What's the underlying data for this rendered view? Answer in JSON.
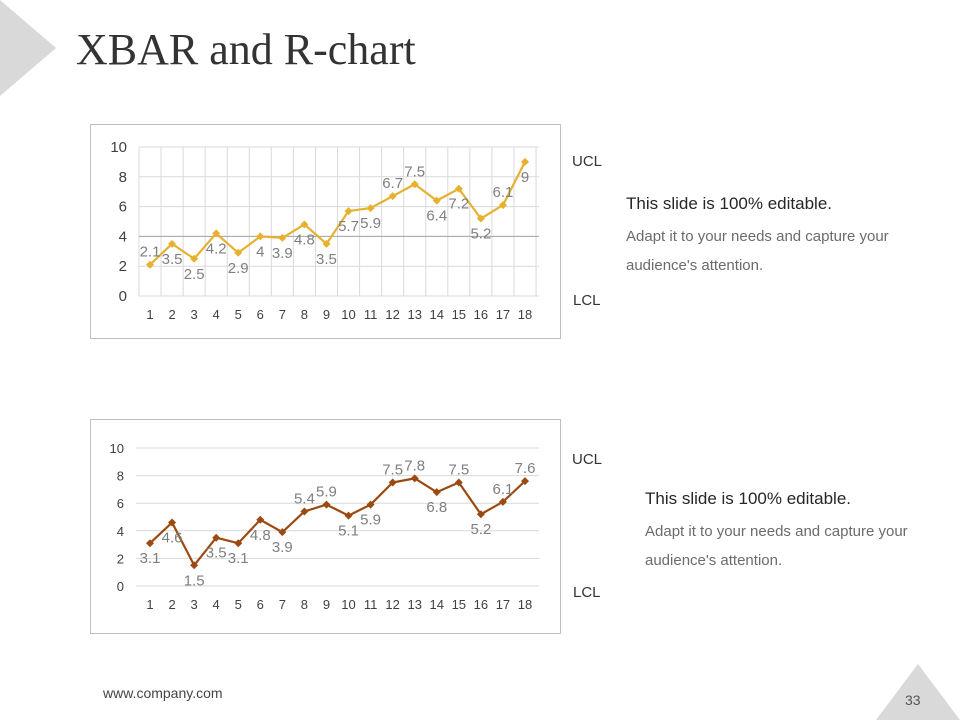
{
  "slide": {
    "title": "XBAR and R-chart",
    "footer_url": "www.company.com",
    "page_number": "33",
    "accent_gray": "#d9d9d9"
  },
  "chart_data": [
    {
      "type": "line",
      "title": "",
      "xlabel": "",
      "ylabel": "",
      "categories": [
        "1",
        "2",
        "3",
        "4",
        "5",
        "6",
        "7",
        "8",
        "9",
        "10",
        "11",
        "12",
        "13",
        "14",
        "15",
        "16",
        "17",
        "18"
      ],
      "series": [
        {
          "name": "XBAR",
          "color": "#e6b12e",
          "values": [
            2.1,
            3.5,
            2.5,
            4.2,
            2.9,
            4,
            3.9,
            4.8,
            3.5,
            5.7,
            5.9,
            6.7,
            7.5,
            6.4,
            7.2,
            5.2,
            6.1,
            9
          ]
        }
      ],
      "ylim": [
        0,
        10
      ],
      "yticks": [
        "0",
        "2",
        "4",
        "6",
        "8",
        "10"
      ],
      "vertical_grid": true,
      "center_line": 4,
      "limits": {
        "ucl_label": "UCL",
        "lcl_label": "LCL"
      }
    },
    {
      "type": "line",
      "title": "",
      "xlabel": "",
      "ylabel": "",
      "categories": [
        "1",
        "2",
        "3",
        "4",
        "5",
        "6",
        "7",
        "8",
        "9",
        "10",
        "11",
        "12",
        "13",
        "14",
        "15",
        "16",
        "17",
        "18"
      ],
      "series": [
        {
          "name": "R",
          "color": "#9b4a12",
          "values": [
            3.1,
            4.6,
            1.5,
            3.5,
            3.1,
            4.8,
            3.9,
            5.4,
            5.9,
            5.1,
            5.9,
            7.5,
            7.8,
            6.8,
            7.5,
            5.2,
            6.1,
            7.6
          ]
        }
      ],
      "ylim": [
        0,
        10
      ],
      "yticks": [
        "0",
        "2",
        "4",
        "6",
        "8",
        "10"
      ],
      "vertical_grid": false,
      "limits": {
        "ucl_label": "UCL",
        "lcl_label": "LCL"
      }
    }
  ],
  "notes": [
    {
      "heading": "This slide is 100% editable.",
      "body": "Adapt it to your needs and capture your audience's attention."
    },
    {
      "heading": "This slide is 100% editable.",
      "body": "Adapt it to your needs and capture your audience's attention."
    }
  ]
}
